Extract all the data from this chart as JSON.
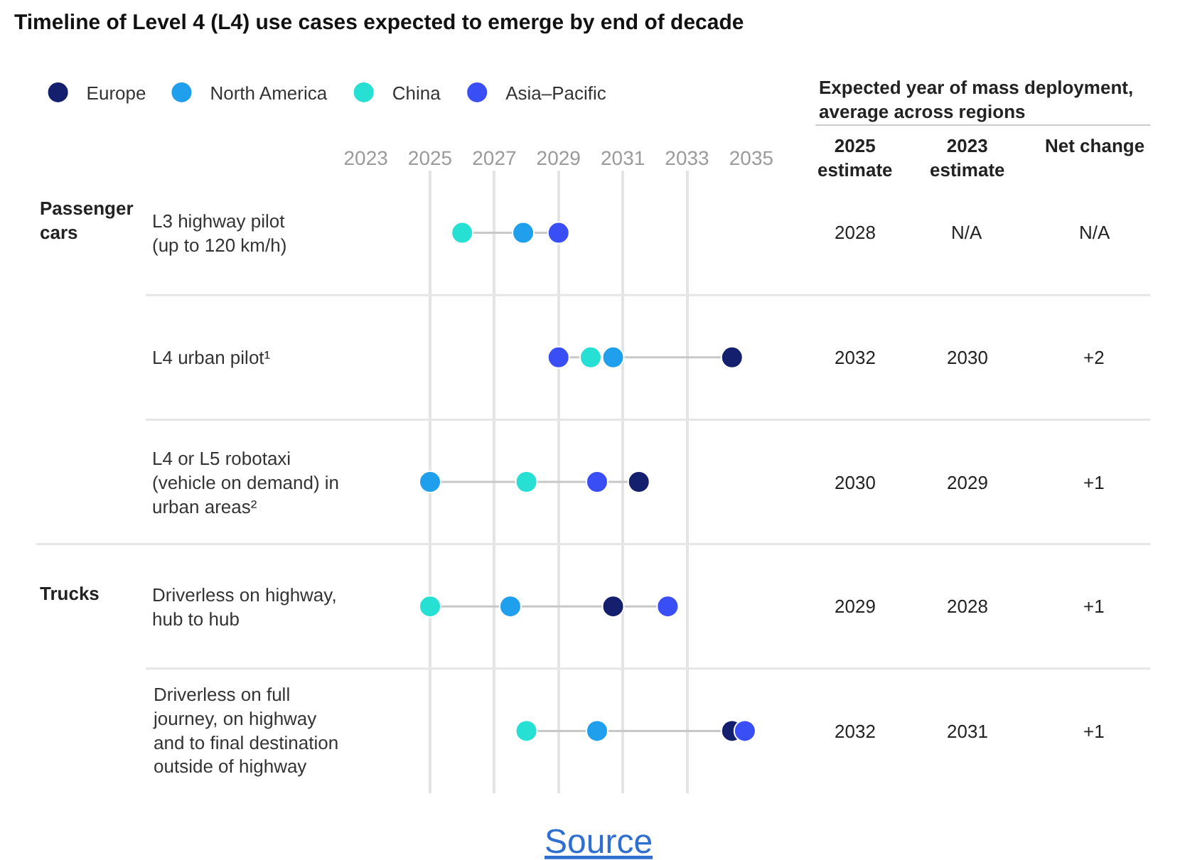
{
  "chart_data": {
    "type": "scatter",
    "title": "Timeline of Level 4 (L4) use cases expected to emerge by end of decade",
    "orientation": "horizontal",
    "categories": [
      "L3 highway pilot\n(up to 120 km/h)",
      "L4 urban pilot¹",
      "L4 or L5 robotaxi\n(vehicle on demand) in\nurban areas²",
      "Driverless on highway,\nhub to hub",
      "Driverless on full\njourney, on highway\nand to final destination\noutside of highway"
    ],
    "series": [
      {
        "name": "Europe",
        "color": "#14206e",
        "values": [
          null,
          2034.4,
          2031.5,
          2030.7,
          2034.4
        ]
      },
      {
        "name": "North America",
        "color": "#1f9fec",
        "values": [
          2027.9,
          2030.7,
          2025.0,
          2027.5,
          2030.2
        ]
      },
      {
        "name": "China",
        "color": "#27e0d4",
        "values": [
          2026.0,
          2030.0,
          2028.0,
          2025.0,
          2028.0
        ]
      },
      {
        "name": "Asia–Pacific",
        "color": "#3a4ef5",
        "values": [
          2029.0,
          2029.0,
          2030.2,
          2032.4,
          2034.8
        ]
      }
    ],
    "xlim": [
      2023,
      2035
    ],
    "xticks": [
      2023,
      2025,
      2027,
      2029,
      2031,
      2033,
      2035
    ],
    "grid": "x",
    "marker": "circle",
    "legend": "top left",
    "annotations": [
      "Expected year of mass deployment,\naverage across regions",
      "2025\nestimate",
      "2023\nestimate",
      "Net change",
      "2028",
      "N/A",
      "N/A",
      "2032",
      "2030",
      "+2",
      "2030",
      "2029",
      "+1",
      "2029",
      "2028",
      "+1",
      "2032",
      "2031",
      "+1",
      "Passenger\ncars",
      "Trucks",
      "Source"
    ]
  }
}
